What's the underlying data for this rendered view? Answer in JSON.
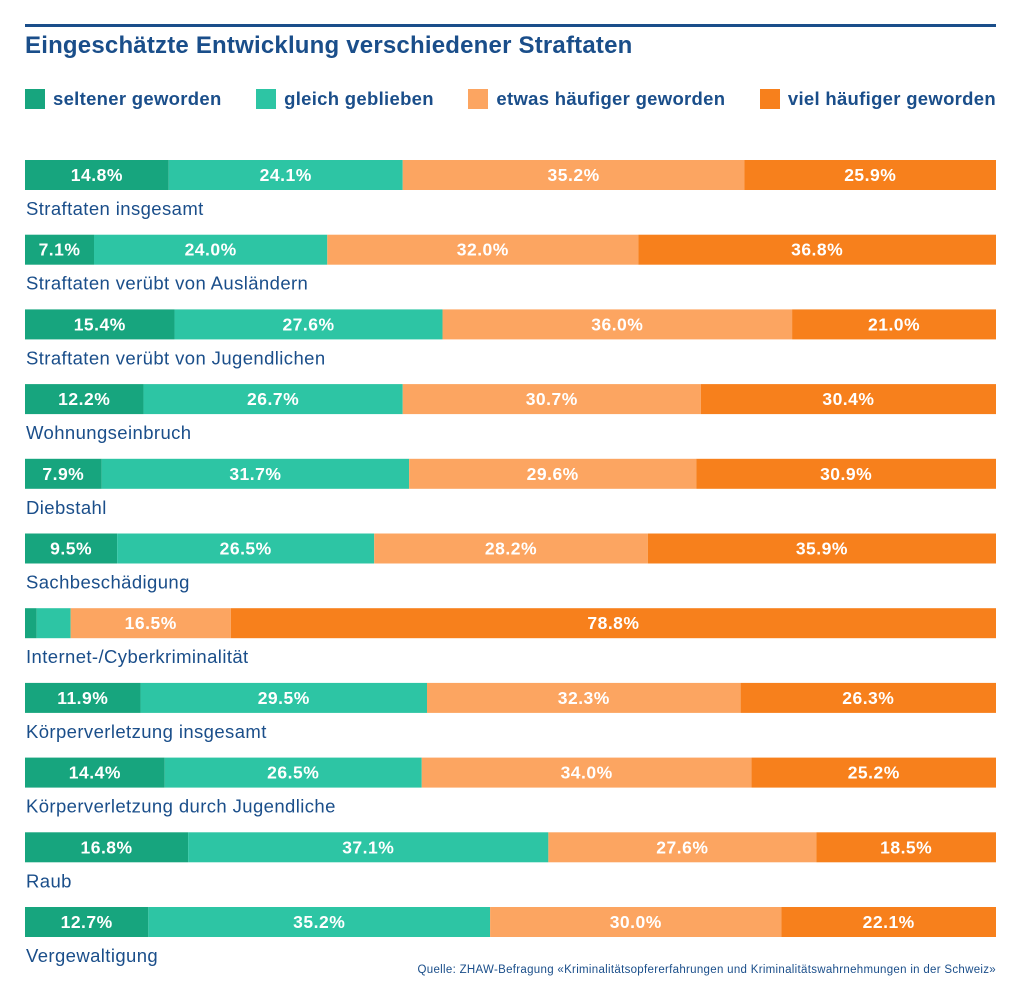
{
  "chart_data": {
    "type": "bar",
    "orientation": "horizontal",
    "stacked": true,
    "normalized_percent": true,
    "title": "Eingeschätzte Entwicklung verschiedener Straftaten",
    "legend_position": "top",
    "grid": false,
    "xlim": [
      0,
      100
    ],
    "categories": [
      "Straftaten insgesamt",
      "Straftaten verübt von Ausländern",
      "Straftaten verübt von Jugendlichen",
      "Wohnungseinbruch",
      "Diebstahl",
      "Sachbeschädigung",
      "Internet-/Cyberkriminalität",
      "Körperverletzung insgesamt",
      "Körperverletzung durch Jugendliche",
      "Raub",
      "Vergewaltigung"
    ],
    "series": [
      {
        "name": "seltener geworden",
        "color": "#17a57e",
        "values": [
          14.8,
          7.1,
          15.4,
          12.2,
          7.9,
          9.5,
          1.2,
          11.9,
          14.4,
          16.8,
          12.7
        ],
        "labels": [
          "14.8%",
          "7.1%",
          "15.4%",
          "12.2%",
          "7.9%",
          "9.5%",
          "",
          "11.9%",
          "14.4%",
          "16.8%",
          "12.7%"
        ]
      },
      {
        "name": "gleich geblieben",
        "color": "#2dc5a4",
        "values": [
          24.1,
          24.0,
          27.6,
          26.7,
          31.7,
          26.5,
          3.5,
          29.5,
          26.5,
          37.1,
          35.2
        ],
        "labels": [
          "24.1%",
          "24.0%",
          "27.6%",
          "26.7%",
          "31.7%",
          "26.5%",
          "",
          "29.5%",
          "26.5%",
          "37.1%",
          "35.2%"
        ]
      },
      {
        "name": "etwas häufiger geworden",
        "color": "#fca561",
        "values": [
          35.2,
          32.0,
          36.0,
          30.7,
          29.6,
          28.2,
          16.5,
          32.3,
          34.0,
          27.6,
          30.0
        ],
        "labels": [
          "35.2%",
          "32.0%",
          "36.0%",
          "30.7%",
          "29.6%",
          "28.2%",
          "16.5%",
          "32.3%",
          "34.0%",
          "27.6%",
          "30.0%"
        ]
      },
      {
        "name": "viel häufiger geworden",
        "color": "#f7801c",
        "values": [
          25.9,
          36.8,
          21.0,
          30.4,
          30.9,
          35.9,
          78.8,
          26.3,
          25.2,
          18.5,
          22.1
        ],
        "labels": [
          "25.9%",
          "36.8%",
          "21.0%",
          "30.4%",
          "30.9%",
          "35.9%",
          "78.8%",
          "26.3%",
          "25.2%",
          "18.5%",
          "22.1%"
        ]
      }
    ],
    "source": "Quelle: ZHAW-Befragung «Kriminalitätsopfererfahrungen und Kriminalitätswahrnehmungen in der Schweiz»"
  }
}
